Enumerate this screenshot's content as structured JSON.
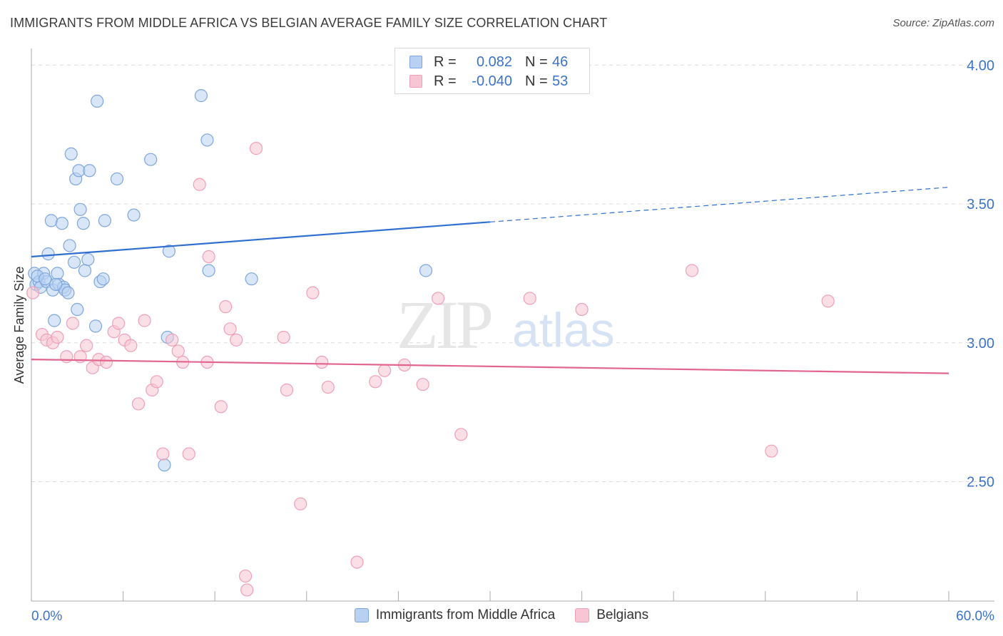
{
  "header": {
    "title": "IMMIGRANTS FROM MIDDLE AFRICA VS BELGIAN AVERAGE FAMILY SIZE CORRELATION CHART",
    "source": "Source: ZipAtlas.com"
  },
  "legend": {
    "rows": [
      {
        "r_label": "R =",
        "r_value": "0.082",
        "n_label": "N =",
        "n_value": "46"
      },
      {
        "r_label": "R =",
        "r_value": "-0.040",
        "n_label": "N =",
        "n_value": "53"
      }
    ]
  },
  "watermark": {
    "zip": "ZIP",
    "atlas": "atlas"
  },
  "colors": {
    "blue_fill": "#b8d1f2",
    "blue_stroke": "#7fa6dc",
    "blue_line": "#2f6fcf",
    "pink_fill": "#f8c5d4",
    "pink_stroke": "#eea0b8",
    "pink_line": "#e26590",
    "tick_label": "#3b73c8",
    "grid": "#dcdcdc"
  },
  "chart_data": {
    "type": "scatter",
    "title": "IMMIGRANTS FROM MIDDLE AFRICA VS BELGIAN AVERAGE FAMILY SIZE CORRELATION CHART",
    "ylabel": "Average Family Size",
    "xlabel": "",
    "xlim": [
      0,
      60
    ],
    "ylim": [
      2.07,
      4.07
    ],
    "x_tick_labels": {
      "min": "0.0%",
      "max": "60.0%"
    },
    "y_ticks": [
      2.5,
      3.0,
      3.5,
      4.0
    ],
    "y_tick_labels": [
      "2.50",
      "3.00",
      "3.50",
      "4.00"
    ],
    "grid": true,
    "series": [
      {
        "name": "Immigrants from Middle Africa",
        "color": "blue",
        "trend": {
          "x0": 0,
          "y0": 3.31,
          "x1": 30,
          "y1": 3.435,
          "dashed_to_x": 60,
          "dashed_to_y": 3.56
        },
        "points": [
          [
            0.2,
            3.25
          ],
          [
            0.3,
            3.21
          ],
          [
            0.5,
            3.22
          ],
          [
            0.6,
            3.2
          ],
          [
            0.8,
            3.25
          ],
          [
            1.0,
            3.22
          ],
          [
            1.1,
            3.32
          ],
          [
            1.3,
            3.44
          ],
          [
            1.4,
            3.19
          ],
          [
            1.5,
            3.08
          ],
          [
            1.7,
            3.25
          ],
          [
            1.8,
            3.21
          ],
          [
            2.0,
            3.43
          ],
          [
            2.1,
            3.2
          ],
          [
            2.2,
            3.19
          ],
          [
            2.4,
            3.18
          ],
          [
            2.5,
            3.35
          ],
          [
            2.6,
            3.68
          ],
          [
            2.8,
            3.29
          ],
          [
            2.9,
            3.59
          ],
          [
            3.0,
            3.12
          ],
          [
            3.1,
            3.62
          ],
          [
            3.2,
            3.48
          ],
          [
            3.4,
            3.43
          ],
          [
            3.5,
            3.26
          ],
          [
            3.7,
            3.3
          ],
          [
            3.8,
            3.62
          ],
          [
            4.2,
            3.06
          ],
          [
            4.3,
            3.87
          ],
          [
            4.5,
            3.22
          ],
          [
            4.7,
            3.23
          ],
          [
            4.8,
            3.44
          ],
          [
            5.6,
            3.59
          ],
          [
            6.7,
            3.46
          ],
          [
            7.8,
            3.66
          ],
          [
            8.7,
            2.56
          ],
          [
            8.9,
            3.02
          ],
          [
            9.0,
            3.33
          ],
          [
            11.1,
            3.89
          ],
          [
            11.5,
            3.73
          ],
          [
            11.6,
            3.26
          ],
          [
            14.4,
            3.23
          ],
          [
            25.8,
            3.26
          ],
          [
            0.4,
            3.24
          ],
          [
            0.9,
            3.23
          ],
          [
            1.6,
            3.21
          ]
        ]
      },
      {
        "name": "Belgians",
        "color": "pink",
        "trend": {
          "x0": 0,
          "y0": 2.94,
          "x1": 60,
          "y1": 2.89
        },
        "points": [
          [
            0.1,
            3.18
          ],
          [
            0.7,
            3.03
          ],
          [
            1.0,
            3.01
          ],
          [
            1.4,
            3.0
          ],
          [
            1.7,
            3.02
          ],
          [
            2.3,
            2.95
          ],
          [
            2.7,
            3.07
          ],
          [
            3.2,
            2.95
          ],
          [
            3.6,
            2.99
          ],
          [
            4.0,
            2.91
          ],
          [
            4.4,
            2.94
          ],
          [
            4.9,
            2.93
          ],
          [
            5.4,
            3.04
          ],
          [
            5.7,
            3.07
          ],
          [
            6.1,
            3.01
          ],
          [
            6.5,
            2.99
          ],
          [
            7.0,
            2.78
          ],
          [
            7.4,
            3.08
          ],
          [
            7.9,
            2.83
          ],
          [
            8.2,
            2.86
          ],
          [
            8.6,
            2.6
          ],
          [
            9.2,
            3.01
          ],
          [
            9.6,
            2.97
          ],
          [
            9.9,
            2.93
          ],
          [
            10.3,
            2.6
          ],
          [
            11.5,
            2.93
          ],
          [
            11.6,
            3.31
          ],
          [
            11.0,
            3.57
          ],
          [
            12.4,
            2.77
          ],
          [
            12.7,
            3.13
          ],
          [
            13.0,
            3.05
          ],
          [
            13.4,
            3.01
          ],
          [
            14.0,
            2.16
          ],
          [
            14.1,
            2.11
          ],
          [
            14.7,
            3.7
          ],
          [
            16.5,
            3.02
          ],
          [
            16.7,
            2.83
          ],
          [
            17.6,
            2.42
          ],
          [
            18.4,
            3.18
          ],
          [
            19.0,
            2.93
          ],
          [
            19.4,
            2.84
          ],
          [
            21.3,
            2.21
          ],
          [
            22.5,
            2.86
          ],
          [
            23.1,
            2.9
          ],
          [
            24.4,
            2.92
          ],
          [
            25.6,
            2.85
          ],
          [
            26.6,
            3.16
          ],
          [
            28.1,
            2.67
          ],
          [
            32.6,
            3.16
          ],
          [
            36.0,
            3.12
          ],
          [
            43.2,
            3.26
          ],
          [
            48.4,
            2.61
          ],
          [
            52.1,
            3.15
          ]
        ]
      }
    ]
  }
}
